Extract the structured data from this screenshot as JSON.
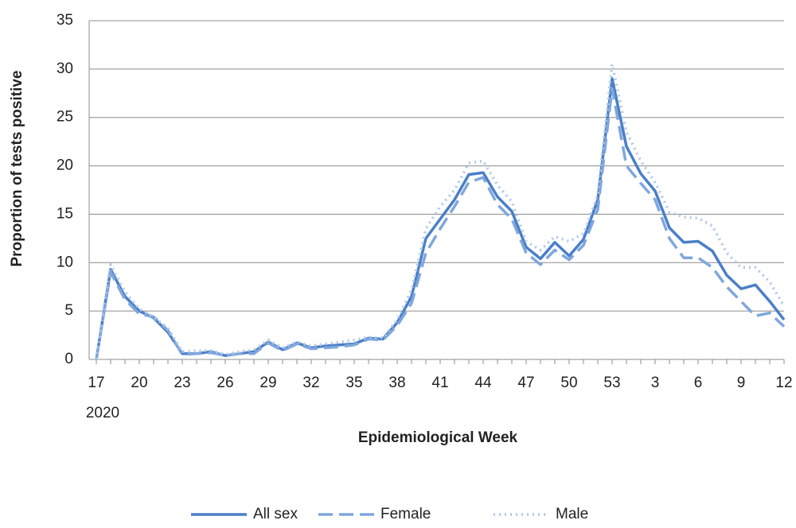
{
  "chart_data": {
    "type": "line",
    "y_label": "Proportion of tests positive",
    "x_label": "Epidemiological Week",
    "x_sublabel": "2020",
    "categories": [
      "17",
      null,
      null,
      "20",
      null,
      null,
      "23",
      null,
      null,
      "26",
      null,
      null,
      "29",
      null,
      null,
      "32",
      null,
      null,
      "35",
      null,
      null,
      "38",
      null,
      null,
      "41",
      null,
      null,
      "44",
      null,
      null,
      "47",
      null,
      null,
      "50",
      null,
      null,
      "53",
      null,
      null,
      "3",
      null,
      null,
      "6",
      null,
      null,
      "9",
      null,
      null,
      "12"
    ],
    "series": [
      {
        "name": "All sex",
        "color": "#4a7fc8",
        "dash": "solid",
        "values": [
          0,
          9.3,
          6.5,
          5.0,
          4.3,
          2.8,
          0.6,
          0.6,
          0.8,
          0.4,
          0.6,
          0.8,
          1.8,
          1.0,
          1.7,
          1.2,
          1.4,
          1.5,
          1.6,
          2.2,
          2.1,
          3.8,
          6.5,
          12.5,
          14.5,
          16.5,
          19.1,
          19.3,
          16.8,
          15.3,
          11.6,
          10.4,
          12.1,
          10.7,
          12.4,
          16.5,
          29.0,
          22.0,
          19.2,
          17.4,
          13.6,
          12.1,
          12.2,
          11.2,
          8.7,
          7.3,
          7.7,
          6.0,
          4.1
        ]
      },
      {
        "name": "Female",
        "color": "#7fa7dc",
        "dash": "dashed",
        "values": [
          0,
          9.0,
          6.2,
          4.7,
          4.4,
          3.0,
          0.5,
          0.6,
          0.7,
          0.4,
          0.6,
          0.6,
          1.7,
          0.9,
          1.6,
          1.1,
          1.2,
          1.3,
          1.5,
          2.1,
          2.0,
          3.5,
          5.8,
          11.0,
          13.5,
          15.8,
          18.3,
          18.8,
          16.0,
          14.5,
          11.0,
          9.8,
          11.3,
          10.3,
          11.8,
          15.5,
          28.0,
          20.0,
          18.2,
          16.5,
          12.5,
          10.5,
          10.5,
          9.5,
          7.5,
          6.0,
          4.5,
          4.8,
          3.4
        ]
      },
      {
        "name": "Male",
        "color": "#aec6e8",
        "dash": "dotted",
        "values": [
          0,
          9.8,
          7.0,
          5.2,
          4.4,
          3.2,
          0.8,
          0.9,
          0.9,
          0.5,
          0.8,
          1.0,
          2.0,
          1.2,
          1.8,
          1.4,
          1.6,
          1.8,
          2.0,
          2.3,
          2.2,
          4.1,
          7.2,
          13.5,
          15.8,
          17.5,
          20.3,
          20.5,
          18.0,
          16.3,
          12.2,
          11.3,
          12.7,
          12.2,
          13.0,
          17.0,
          30.5,
          23.5,
          20.5,
          18.3,
          15.2,
          14.7,
          14.6,
          13.8,
          11.0,
          9.5,
          9.5,
          8.0,
          5.5
        ]
      }
    ],
    "ylim": [
      0,
      35
    ],
    "yticks": [
      0,
      5,
      10,
      15,
      20,
      25,
      30,
      35
    ],
    "grid": true,
    "legend": "bottom"
  }
}
